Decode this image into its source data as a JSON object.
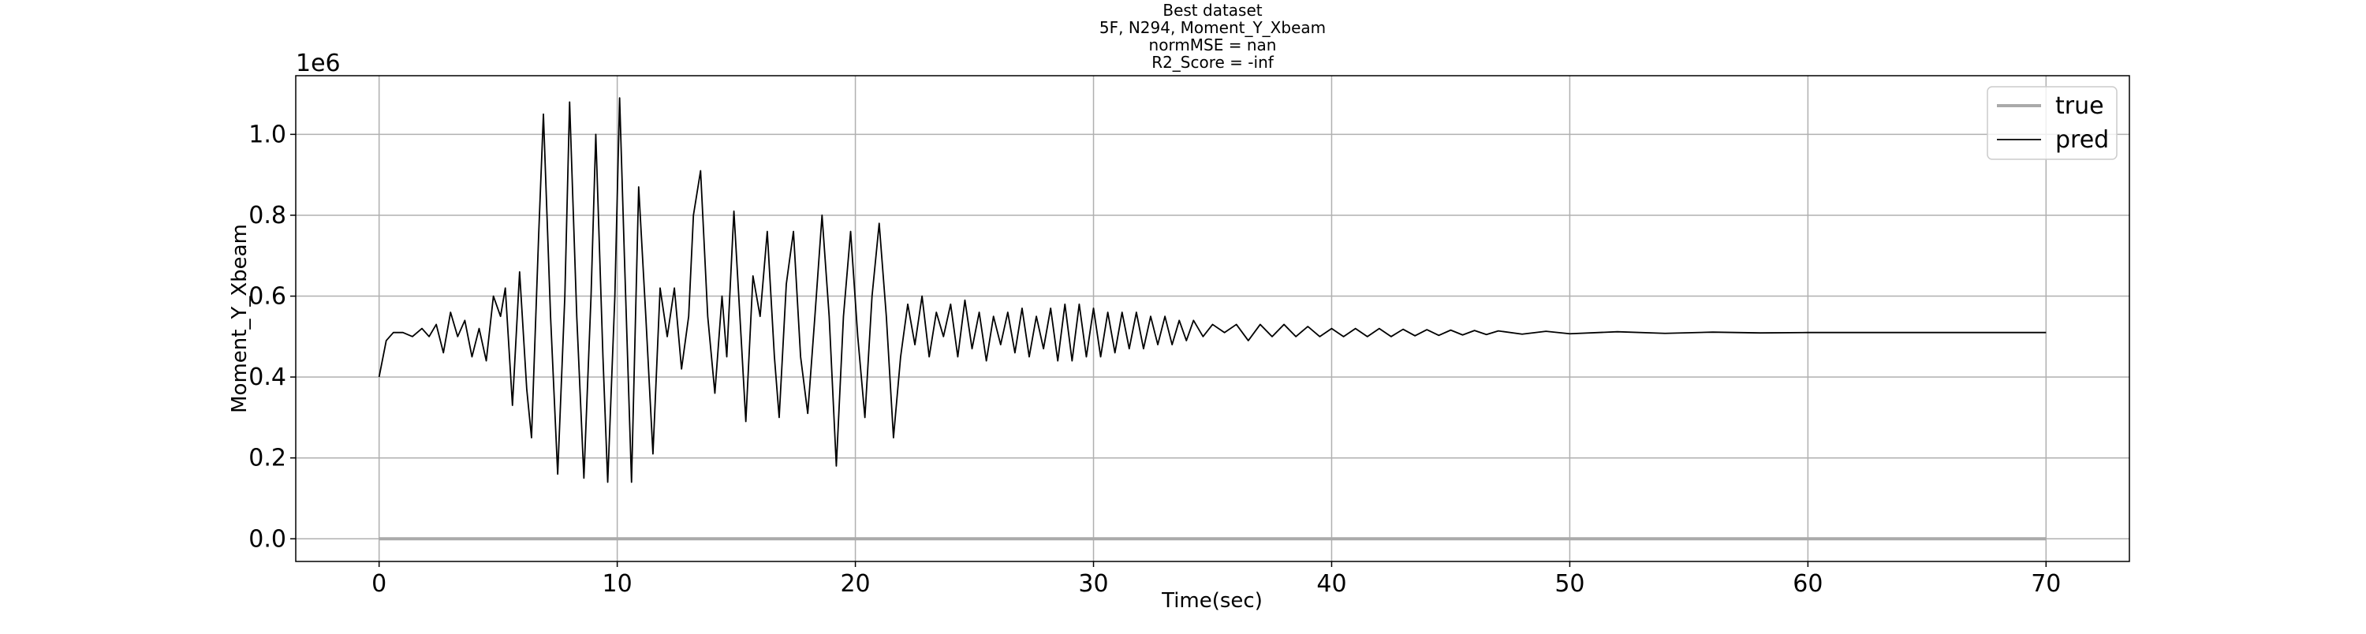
{
  "chart_data": {
    "type": "line",
    "title": [
      "Best dataset",
      "5F, N294, Moment_Y_Xbeam",
      "normMSE = nan",
      "R2_Score = -inf"
    ],
    "xlabel": "Time(sec)",
    "ylabel": "Moment_Y_Xbeam",
    "y_offset_text": "1e6",
    "xlim": [
      -3.5,
      73.5
    ],
    "ylim": [
      -56000,
      1145000
    ],
    "xticks": [
      0,
      10,
      20,
      30,
      40,
      50,
      60,
      70
    ],
    "yticks": [
      {
        "value": 0,
        "label": "0.0"
      },
      {
        "value": 200000,
        "label": "0.2"
      },
      {
        "value": 400000,
        "label": "0.4"
      },
      {
        "value": 600000,
        "label": "0.6"
      },
      {
        "value": 800000,
        "label": "0.8"
      },
      {
        "value": 1000000,
        "label": "1.0"
      }
    ],
    "grid": true,
    "legend": "upper right",
    "series": [
      {
        "name": "true",
        "color": "#aaaaaa",
        "x": [
          0,
          70
        ],
        "values": [
          0,
          0
        ]
      },
      {
        "name": "pred",
        "color": "#000000",
        "x": [
          0,
          0.3,
          0.6,
          1.0,
          1.4,
          1.8,
          2.1,
          2.4,
          2.7,
          3.0,
          3.3,
          3.6,
          3.9,
          4.2,
          4.5,
          4.8,
          5.1,
          5.3,
          5.6,
          5.9,
          6.2,
          6.4,
          6.7,
          6.9,
          7.2,
          7.5,
          7.8,
          8.0,
          8.3,
          8.6,
          8.9,
          9.1,
          9.4,
          9.6,
          9.9,
          10.1,
          10.3,
          10.6,
          10.9,
          11.2,
          11.5,
          11.8,
          12.1,
          12.4,
          12.7,
          13.0,
          13.2,
          13.5,
          13.8,
          14.1,
          14.4,
          14.6,
          14.9,
          15.2,
          15.4,
          15.7,
          16.0,
          16.3,
          16.6,
          16.8,
          17.1,
          17.4,
          17.7,
          18.0,
          18.3,
          18.6,
          18.9,
          19.2,
          19.5,
          19.8,
          20.1,
          20.4,
          20.7,
          21.0,
          21.3,
          21.6,
          21.9,
          22.2,
          22.5,
          22.8,
          23.1,
          23.4,
          23.7,
          24.0,
          24.3,
          24.6,
          24.9,
          25.2,
          25.5,
          25.8,
          26.1,
          26.4,
          26.7,
          27.0,
          27.3,
          27.6,
          27.9,
          28.2,
          28.5,
          28.8,
          29.1,
          29.4,
          29.7,
          30.0,
          30.3,
          30.6,
          30.9,
          31.2,
          31.5,
          31.8,
          32.1,
          32.4,
          32.7,
          33.0,
          33.3,
          33.6,
          33.9,
          34.2,
          34.6,
          35.0,
          35.5,
          36.0,
          36.5,
          37.0,
          37.5,
          38.0,
          38.5,
          39.0,
          39.5,
          40.0,
          40.5,
          41.0,
          41.5,
          42.0,
          42.5,
          43.0,
          43.5,
          44.0,
          44.5,
          45.0,
          45.5,
          46.0,
          46.5,
          47.0,
          48.0,
          49.0,
          50.0,
          52.0,
          54.0,
          56.0,
          58.0,
          60.0,
          70.0
        ],
        "values": [
          400000,
          490000,
          510000,
          510000,
          500000,
          520000,
          500000,
          530000,
          460000,
          560000,
          500000,
          540000,
          450000,
          520000,
          440000,
          600000,
          550000,
          620000,
          330000,
          660000,
          370000,
          250000,
          750000,
          1050000,
          550000,
          160000,
          600000,
          1080000,
          550000,
          150000,
          600000,
          1000000,
          450000,
          140000,
          600000,
          1090000,
          700000,
          140000,
          870000,
          550000,
          210000,
          620000,
          500000,
          620000,
          420000,
          550000,
          800000,
          910000,
          550000,
          360000,
          600000,
          450000,
          810000,
          500000,
          290000,
          650000,
          550000,
          760000,
          450000,
          300000,
          630000,
          760000,
          450000,
          310000,
          550000,
          800000,
          550000,
          180000,
          550000,
          760000,
          500000,
          300000,
          600000,
          780000,
          550000,
          250000,
          450000,
          580000,
          480000,
          600000,
          450000,
          560000,
          500000,
          580000,
          450000,
          590000,
          470000,
          560000,
          440000,
          550000,
          480000,
          560000,
          460000,
          570000,
          450000,
          550000,
          470000,
          570000,
          440000,
          580000,
          440000,
          580000,
          450000,
          570000,
          450000,
          560000,
          460000,
          560000,
          470000,
          560000,
          470000,
          550000,
          480000,
          550000,
          480000,
          540000,
          490000,
          540000,
          500000,
          530000,
          510000,
          530000,
          490000,
          530000,
          500000,
          530000,
          500000,
          525000,
          500000,
          520000,
          500000,
          520000,
          500000,
          520000,
          500000,
          518000,
          502000,
          517000,
          503000,
          516000,
          504000,
          515000,
          505000,
          514000,
          506000,
          513000,
          507000,
          512000,
          508000,
          511000,
          509000,
          510000,
          510000
        ]
      }
    ]
  }
}
